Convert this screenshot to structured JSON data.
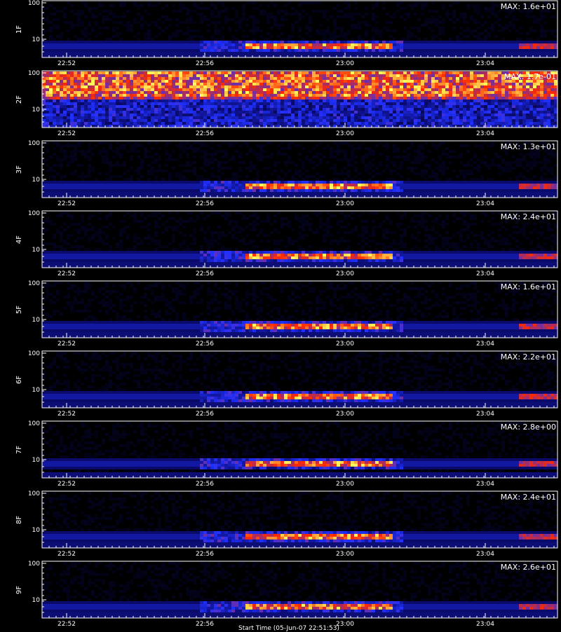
{
  "chart_data": [
    {
      "type": "heatmap",
      "ylabel": "1F",
      "max_label": "MAX: 1.6e+01",
      "pattern": "burst",
      "yticks": [
        "100",
        "10"
      ],
      "xticks": [
        "22:52",
        "22:56",
        "23:00",
        "23:04"
      ]
    },
    {
      "type": "heatmap",
      "ylabel": "2F",
      "max_label": "MAX: 1.7e-01",
      "pattern": "noise",
      "yticks": [
        "100",
        "10"
      ],
      "xticks": [
        "22:52",
        "22:56",
        "23:00",
        "23:04"
      ]
    },
    {
      "type": "heatmap",
      "ylabel": "3F",
      "max_label": "MAX: 1.3e+01",
      "pattern": "burst",
      "yticks": [
        "100",
        "10"
      ],
      "xticks": [
        "22:52",
        "22:56",
        "23:00",
        "23:04"
      ]
    },
    {
      "type": "heatmap",
      "ylabel": "4F",
      "max_label": "MAX: 2.4e+01",
      "pattern": "burst",
      "yticks": [
        "100",
        "10"
      ],
      "xticks": [
        "22:52",
        "22:56",
        "23:00",
        "23:04"
      ]
    },
    {
      "type": "heatmap",
      "ylabel": "5F",
      "max_label": "MAX: 1.6e+01",
      "pattern": "burst",
      "yticks": [
        "100",
        "10"
      ],
      "xticks": [
        "22:52",
        "22:56",
        "23:00",
        "23:04"
      ]
    },
    {
      "type": "heatmap",
      "ylabel": "6F",
      "max_label": "MAX: 2.2e+01",
      "pattern": "burst",
      "yticks": [
        "100",
        "10"
      ],
      "xticks": [
        "22:52",
        "22:56",
        "23:00",
        "23:04"
      ]
    },
    {
      "type": "heatmap",
      "ylabel": "7F",
      "max_label": "MAX: 2.8e+00",
      "pattern": "burst_high",
      "yticks": [
        "100",
        "10"
      ],
      "xticks": [
        "22:52",
        "22:56",
        "23:00",
        "23:04"
      ]
    },
    {
      "type": "heatmap",
      "ylabel": "8F",
      "max_label": "MAX: 2.4e+01",
      "pattern": "burst",
      "yticks": [
        "100",
        "10"
      ],
      "xticks": [
        "22:52",
        "22:56",
        "23:00",
        "23:04"
      ]
    },
    {
      "type": "heatmap",
      "ylabel": "9F",
      "max_label": "MAX: 2.6e+01",
      "pattern": "burst",
      "yticks": [
        "100",
        "10"
      ],
      "xticks": [
        "22:52",
        "22:56",
        "23:00",
        "23:04"
      ]
    }
  ],
  "footer_text": "Start Time (05-Jun-07 22:51:53)",
  "colors": {
    "background": "#000000",
    "axes": "#ffffff",
    "low": "#0a0a6a",
    "mid": "#2030ff",
    "high": "#ff2a00",
    "peak": "#ffff60"
  }
}
